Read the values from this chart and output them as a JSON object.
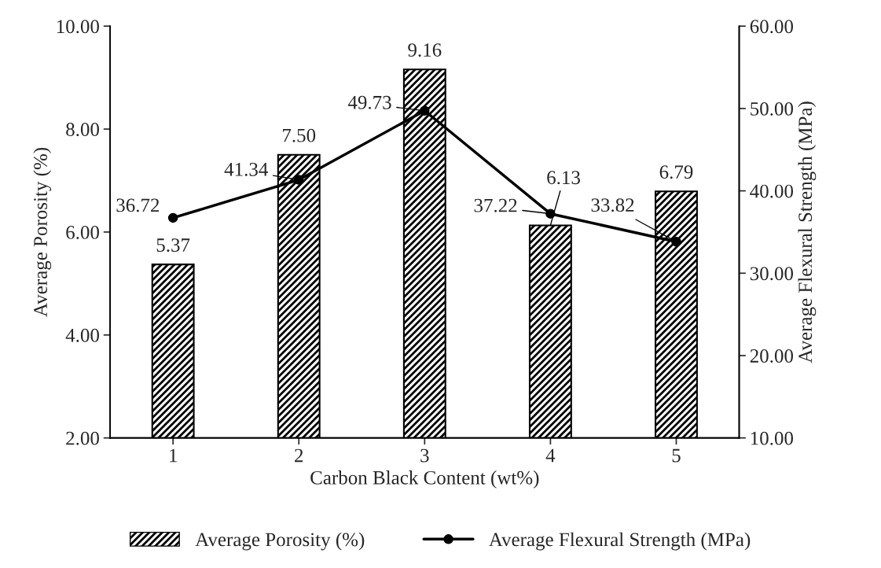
{
  "chart_data": {
    "type": "bar",
    "xlabel": "Carbon Black Content (wt%)",
    "ylabel": "Average Porosity (%)",
    "y2label": "Average Flexural Strength (MPa)",
    "categories": [
      "1",
      "2",
      "3",
      "4",
      "5"
    ],
    "series": [
      {
        "name": "Average Porosity (%)",
        "color": "#000000",
        "values": [
          5.37,
          7.5,
          9.16,
          6.13,
          6.79
        ],
        "value_labels": [
          "5.37",
          "7.50",
          "9.16",
          "6.13",
          "6.79"
        ]
      },
      {
        "name": "Average Flexural Strength (MPa)",
        "type": "line",
        "axis": "y2",
        "color": "#000000",
        "marker": "circle",
        "line_style": "solid",
        "values": [
          36.72,
          41.34,
          49.73,
          37.22,
          33.82
        ],
        "value_labels": [
          "36.72",
          "41.34",
          "49.73",
          "37.22",
          "33.82"
        ]
      }
    ],
    "ylim": [
      2,
      10
    ],
    "yticks": [
      {
        "value": 2,
        "label": "2.00"
      },
      {
        "value": 4,
        "label": "4.00"
      },
      {
        "value": 6,
        "label": "6.00"
      },
      {
        "value": 8,
        "label": "8.00"
      },
      {
        "value": 10,
        "label": "10.00"
      }
    ],
    "y2lim": [
      10,
      60
    ],
    "y2ticks": [
      {
        "value": 10,
        "label": "10.00"
      },
      {
        "value": 20,
        "label": "20.00"
      },
      {
        "value": 30,
        "label": "30.00"
      },
      {
        "value": 40,
        "label": "40.00"
      },
      {
        "value": 50,
        "label": "50.00"
      },
      {
        "value": 60,
        "label": "60.00"
      }
    ],
    "grid": false,
    "legend": "bottom"
  }
}
